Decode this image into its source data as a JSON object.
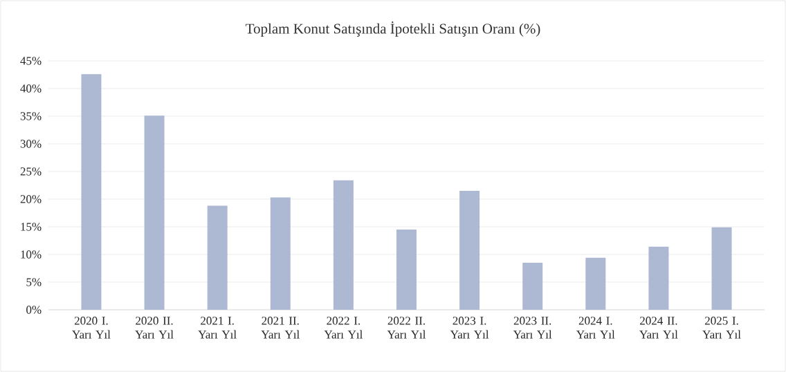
{
  "chart_data": {
    "type": "bar",
    "title": "Toplam Konut Satışında İpotekli Satışın Oranı (%)",
    "categories": [
      "2020 I. Yarı Yıl",
      "2020 II. Yarı Yıl",
      "2021 I. Yarı Yıl",
      "2021 II. Yarı Yıl",
      "2022 I. Yarı Yıl",
      "2022 II. Yarı Yıl",
      "2023 I. Yarı Yıl",
      "2023 II. Yarı Yıl",
      "2024 I. Yarı Yıl",
      "2024 II. Yarı Yıl",
      "2025 I. Yarı Yıl"
    ],
    "values": [
      42.6,
      35.1,
      18.8,
      20.3,
      23.4,
      14.5,
      21.5,
      8.5,
      9.4,
      11.4,
      14.9
    ],
    "color": "#adb9d3",
    "ylim": [
      0,
      45
    ],
    "yticks": [
      {
        "value": 0,
        "label": "0%"
      },
      {
        "value": 5,
        "label": "5%"
      },
      {
        "value": 10,
        "label": "10%"
      },
      {
        "value": 15,
        "label": "15%"
      },
      {
        "value": 20,
        "label": "20%"
      },
      {
        "value": 25,
        "label": "25%"
      },
      {
        "value": 30,
        "label": "30%"
      },
      {
        "value": 35,
        "label": "35%"
      },
      {
        "value": 40,
        "label": "40%"
      },
      {
        "value": 45,
        "label": "45%"
      }
    ],
    "grid": "y"
  }
}
